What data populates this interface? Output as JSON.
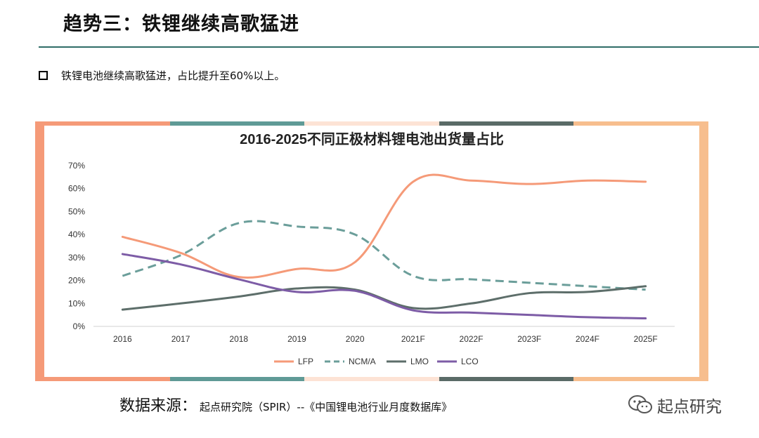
{
  "slide": {
    "title": "趋势三：铁锂继续高歌猛进",
    "bullet": "铁锂电池继续高歌猛进，占比提升至60%以上。",
    "source_label": "数据来源：",
    "source_text": "起点研究院（SPIR）--《中国锂电池行业月度数据库》",
    "watermark": "起点研究"
  },
  "frame_colors": [
    "#f59a78",
    "#5f9a96",
    "#fde3d5",
    "#5a6b67",
    "#f7be8e"
  ],
  "chart_data": {
    "type": "line",
    "title": "2016-2025不同正极材料锂电池出货量占比",
    "categories": [
      "2016",
      "2017",
      "2018",
      "2019",
      "2020",
      "2021F",
      "2022F",
      "2023F",
      "2024F",
      "2025F"
    ],
    "y_ticks": [
      "0%",
      "10%",
      "20%",
      "30%",
      "40%",
      "50%",
      "60%",
      "70%"
    ],
    "ylim": [
      0,
      70
    ],
    "grid": false,
    "legend_position": "bottom",
    "series": [
      {
        "name": "LFP",
        "color": "#f59a78",
        "dash": "solid",
        "values": [
          39,
          32,
          21.5,
          25,
          28,
          63,
          63.5,
          62,
          63.5,
          63
        ]
      },
      {
        "name": "NCM/A",
        "color": "#6b9e9a",
        "dash": "dashed",
        "values": [
          22,
          31,
          45,
          43.5,
          40,
          22,
          20.5,
          19,
          17.5,
          16
        ]
      },
      {
        "name": "LMO",
        "color": "#5d6e6a",
        "dash": "solid",
        "values": [
          7.3,
          10,
          13,
          16.5,
          16,
          8,
          10,
          14.5,
          15,
          17.5
        ]
      },
      {
        "name": "LCO",
        "color": "#7d5ca6",
        "dash": "solid",
        "values": [
          31.5,
          27,
          20.5,
          15,
          15.5,
          7,
          6,
          5,
          4,
          3.5
        ]
      }
    ]
  }
}
